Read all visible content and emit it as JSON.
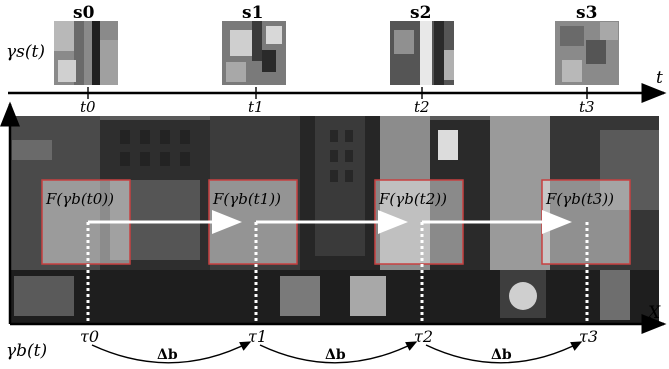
{
  "top": {
    "series_label": "γs(t)",
    "samples": [
      {
        "label": "s0"
      },
      {
        "label": "s1"
      },
      {
        "label": "s2"
      },
      {
        "label": "s3"
      }
    ],
    "axis_label": "t",
    "ticks": [
      "t0",
      "t1",
      "t2",
      "t3"
    ]
  },
  "middle": {
    "axis_label": "X",
    "windows": [
      {
        "label": "F(γb(t0))"
      },
      {
        "label": "F(γb(t1))"
      },
      {
        "label": "F(γb(t2))"
      },
      {
        "label": "F(γb(t3))"
      }
    ],
    "colors": {
      "window_border": "#c84040",
      "arrow": "#ffffff",
      "axis": "#000000"
    }
  },
  "bottom": {
    "series_label": "γb(t)",
    "ticks": [
      "τ0",
      "τ1",
      "τ2",
      "τ3"
    ],
    "deltas": [
      "Δb",
      "Δb",
      "Δb"
    ]
  }
}
